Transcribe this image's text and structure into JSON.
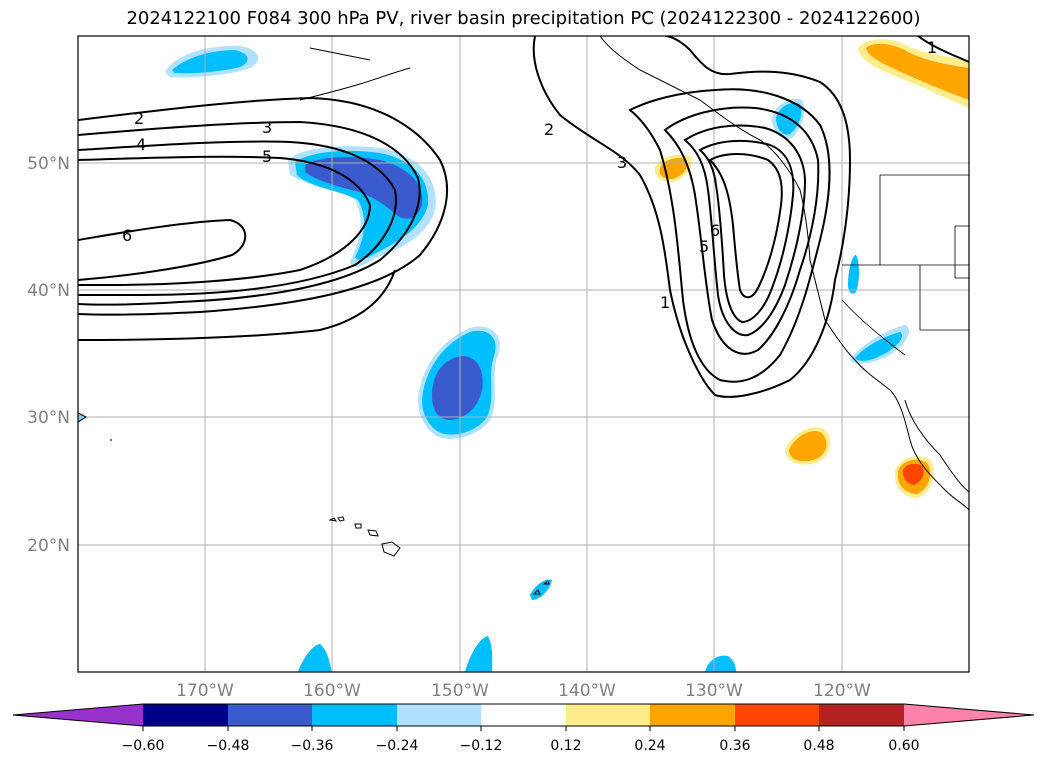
{
  "title": "2024122100 F084 300 hPa PV, river basin precipitation PC (2024122300 - 2024122600)",
  "map": {
    "lat_labels": [
      "50°N",
      "40°N",
      "30°N",
      "20°N"
    ],
    "lon_labels": [
      "170°W",
      "160°W",
      "150°W",
      "140°W",
      "130°W",
      "120°W"
    ],
    "pv_contour_labels": [
      "1",
      "2",
      "3",
      "4",
      "5",
      "6"
    ],
    "grid": true
  },
  "colorbar": {
    "ticks": [
      "−0.60",
      "−0.48",
      "−0.36",
      "−0.24",
      "−0.12",
      "0.12",
      "0.24",
      "0.36",
      "0.48",
      "0.60"
    ],
    "colors": [
      "#9932cc",
      "#00008b",
      "#3a5bcd",
      "#00bfff",
      "#b0e2ff",
      "#ffffff",
      "#ffec8b",
      "#ffa500",
      "#ff4500",
      "#b22222",
      "#ff82ab"
    ],
    "extend": "both"
  }
}
